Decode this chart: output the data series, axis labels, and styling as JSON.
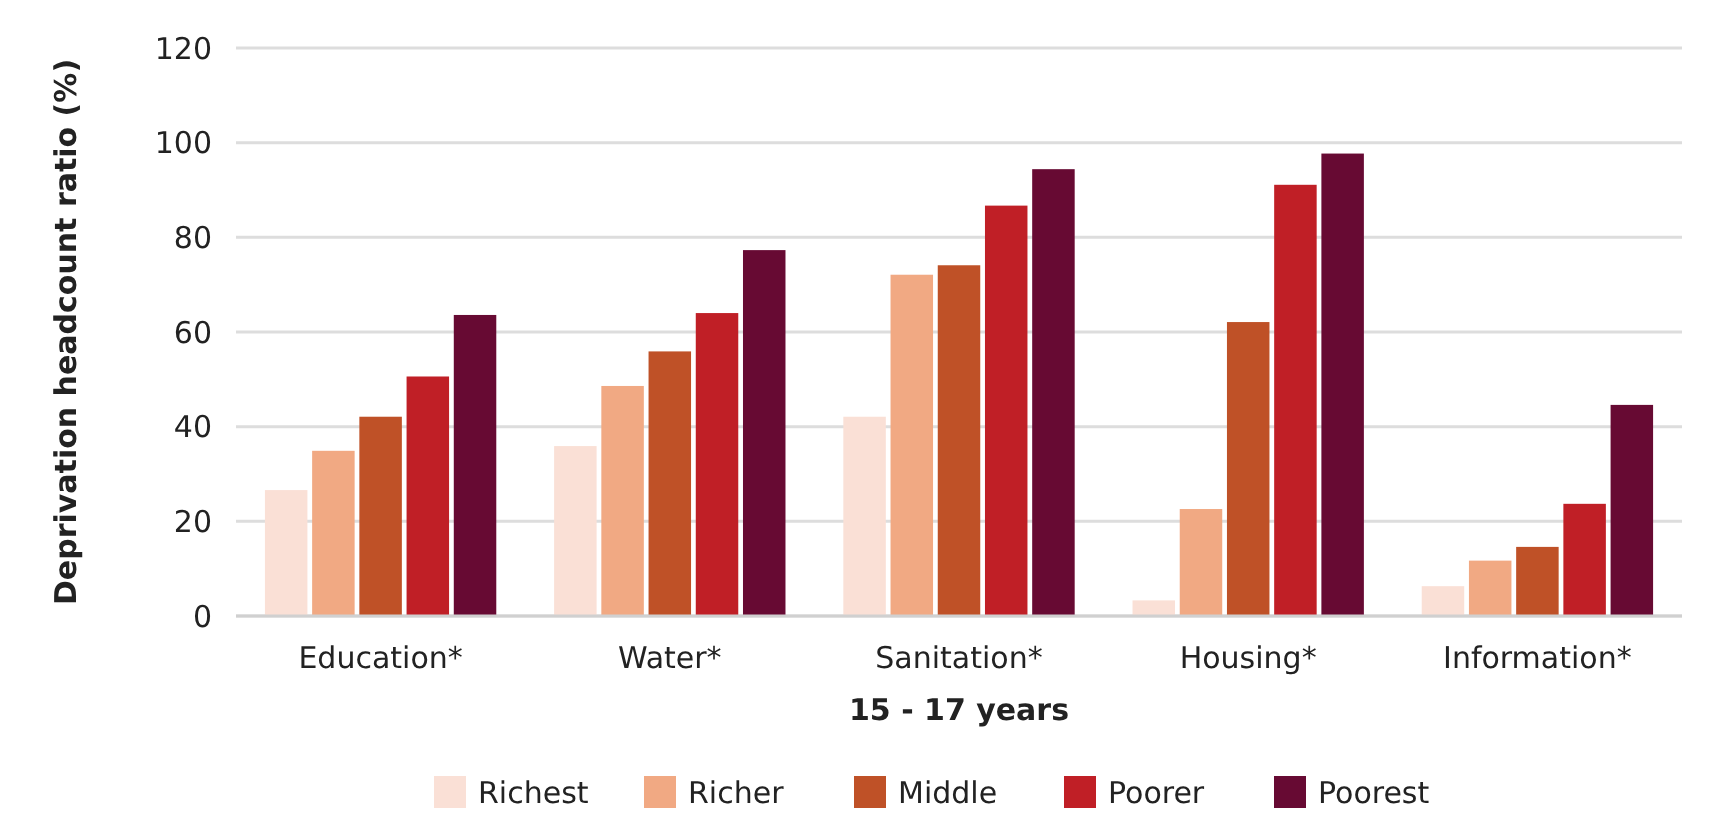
{
  "chart_data": {
    "type": "bar",
    "xlabel": "15 - 17 years",
    "ylabel": "Deprivation headcount ratio (%)",
    "categories": [
      "Education*",
      "Water*",
      "Sanitation*",
      "Housing*",
      "Information*"
    ],
    "series": [
      {
        "name": "Richest",
        "color": "#fae0d6",
        "values": [
          26.6,
          35.9,
          42.1,
          3.3,
          6.3
        ]
      },
      {
        "name": "Richer",
        "color": "#f1a983",
        "values": [
          34.9,
          48.6,
          72.1,
          22.6,
          11.7
        ]
      },
      {
        "name": "Middle",
        "color": "#bf5127",
        "values": [
          42.1,
          55.9,
          74.1,
          62.1,
          14.6
        ]
      },
      {
        "name": "Poorer",
        "color": "#c01f26",
        "values": [
          50.6,
          64,
          86.7,
          91.1,
          23.7
        ]
      },
      {
        "name": "Poorest",
        "color": "#670a33",
        "values": [
          63.6,
          77.3,
          94.4,
          97.7,
          44.6
        ]
      }
    ],
    "ylim": [
      0,
      120
    ],
    "yticks": [
      0,
      20,
      40,
      60,
      80,
      100,
      120
    ],
    "grid": "y",
    "legend": "bottom"
  }
}
